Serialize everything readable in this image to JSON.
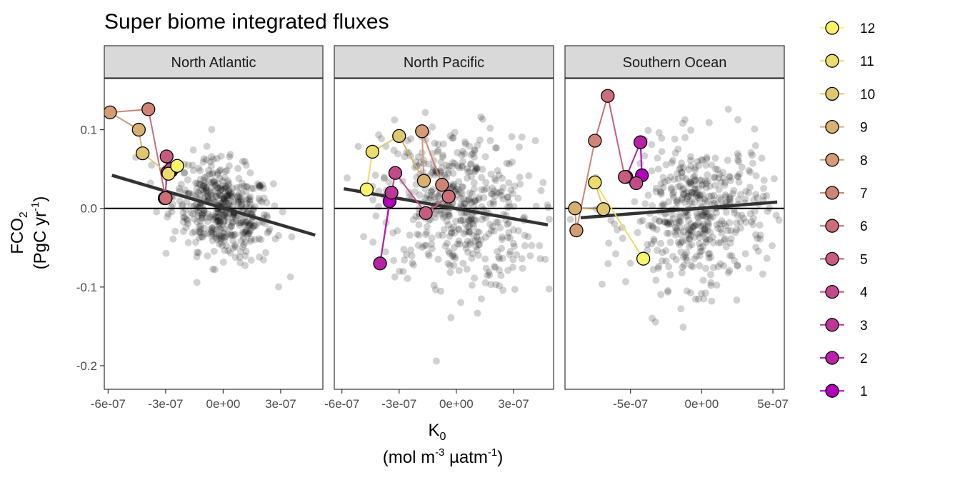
{
  "chart_data": {
    "type": "scatter",
    "title": "Super biome integrated fluxes",
    "xlabel": {
      "main": "K",
      "sub": "0",
      "unit_prefix": "(mol m",
      "unit_sup1": "-3",
      "unit_mid": " µatm",
      "unit_sup2": "-1",
      "unit_suffix": ")"
    },
    "ylabel": {
      "main": "FCO",
      "sub": "2",
      "unit_prefix": "(PgC yr",
      "unit_sup": "-1",
      "unit_suffix": ")"
    },
    "ylim": [
      -0.23,
      0.165
    ],
    "yticks": [
      -0.2,
      -0.1,
      0.0,
      0.1
    ],
    "ytick_labels": [
      "-0.2",
      "-0.1",
      "0.0",
      "0.1"
    ],
    "grid": false,
    "legend_placement": "right",
    "legend": {
      "entries": [
        "12",
        "11",
        "10",
        "9",
        "8",
        "7",
        "6",
        "5",
        "4",
        "3",
        "2",
        "1"
      ],
      "colors": [
        "#f8f36a",
        "#eadd6b",
        "#dfc772",
        "#d8b172",
        "#d49b74",
        "#d08475",
        "#cc6e78",
        "#c85c80",
        "#c34a8a",
        "#bd3895",
        "#b623a5",
        "#b000b8"
      ]
    },
    "panels": [
      {
        "name": "North Atlantic",
        "xlim": [
          -6.2e-07,
          5.2e-07
        ],
        "xticks": [
          -6e-07,
          -3e-07,
          0,
          3e-07
        ],
        "xtick_labels": [
          "-6e-07",
          "-3e-07",
          "0e+00",
          "3e-07"
        ],
        "background_center": [
          -3e-09,
          -0.002
        ],
        "background_spread": [
          1.3e-07,
          0.03
        ],
        "trend": {
          "x": [
            -5.8e-07,
            4.8e-07
          ],
          "y": [
            0.042,
            -0.034
          ]
        },
        "monthly": {
          "months": [
            1,
            2,
            3,
            4,
            5,
            6,
            7,
            8,
            9,
            10,
            11,
            12
          ],
          "x": [
            -3.05e-07,
            -2.9e-07,
            -2.7e-07,
            -2.72e-07,
            -2.95e-07,
            -3e-07,
            -3.9e-07,
            -5.9e-07,
            -4.4e-07,
            -4.2e-07,
            -2.85e-07,
            -2.4e-07
          ],
          "y": [
            0.013,
            0.046,
            0.048,
            0.05,
            0.066,
            0.013,
            0.126,
            0.122,
            0.1,
            0.07,
            0.044,
            0.054
          ]
        }
      },
      {
        "name": "North Pacific",
        "xlim": [
          -6.4e-07,
          5.1e-07
        ],
        "xticks": [
          -6e-07,
          -3e-07,
          0,
          3e-07
        ],
        "xtick_labels": [
          "-6e-07",
          "-3e-07",
          "0e+00",
          "3e-07"
        ],
        "background_center": [
          1e-08,
          0.002
        ],
        "background_spread": [
          2e-07,
          0.05
        ],
        "trend": {
          "x": [
            -5.9e-07,
            4.8e-07
          ],
          "y": [
            0.025,
            -0.021
          ]
        },
        "monthly": {
          "months": [
            1,
            2,
            3,
            4,
            5,
            6,
            7,
            8,
            9,
            10,
            11,
            12
          ],
          "x": [
            -3.5e-07,
            -4e-07,
            -3.4e-07,
            -3.2e-07,
            -1.6e-07,
            -4e-08,
            -7.5e-08,
            -1.8e-07,
            -1.7e-07,
            -3e-07,
            -4.4e-07,
            -4.7e-07
          ],
          "y": [
            0.009,
            -0.07,
            0.02,
            0.045,
            -0.006,
            0.015,
            0.03,
            0.098,
            0.035,
            0.092,
            0.072,
            0.024
          ]
        }
      },
      {
        "name": "Southern Ocean",
        "xlim": [
          -9.6e-07,
          5.8e-07
        ],
        "xticks": [
          -5e-07,
          0,
          5e-07
        ],
        "xtick_labels": [
          "-5e-07",
          "0e+00",
          "5e-07"
        ],
        "background_center": [
          -2e-08,
          -0.008
        ],
        "background_spread": [
          2.4e-07,
          0.045
        ],
        "trend": {
          "x": [
            -8.5e-07,
            5.3e-07
          ],
          "y": [
            -0.012,
            0.008
          ]
        },
        "monthly": {
          "months": [
            1,
            2,
            3,
            4,
            5,
            6,
            7,
            8,
            9,
            10,
            11,
            12
          ],
          "x": [
            -4.2e-07,
            -4.3e-07,
            -5.3e-07,
            -4.6e-07,
            -5.4e-07,
            -6.6e-07,
            -7.5e-07,
            -8.8e-07,
            -8.9e-07,
            -6.9e-07,
            -7.5e-07,
            -4.1e-07
          ],
          "y": [
            0.042,
            0.084,
            0.04,
            0.032,
            0.04,
            0.143,
            0.086,
            -0.028,
            0.0,
            -0.001,
            0.033,
            -0.064
          ]
        }
      }
    ]
  }
}
